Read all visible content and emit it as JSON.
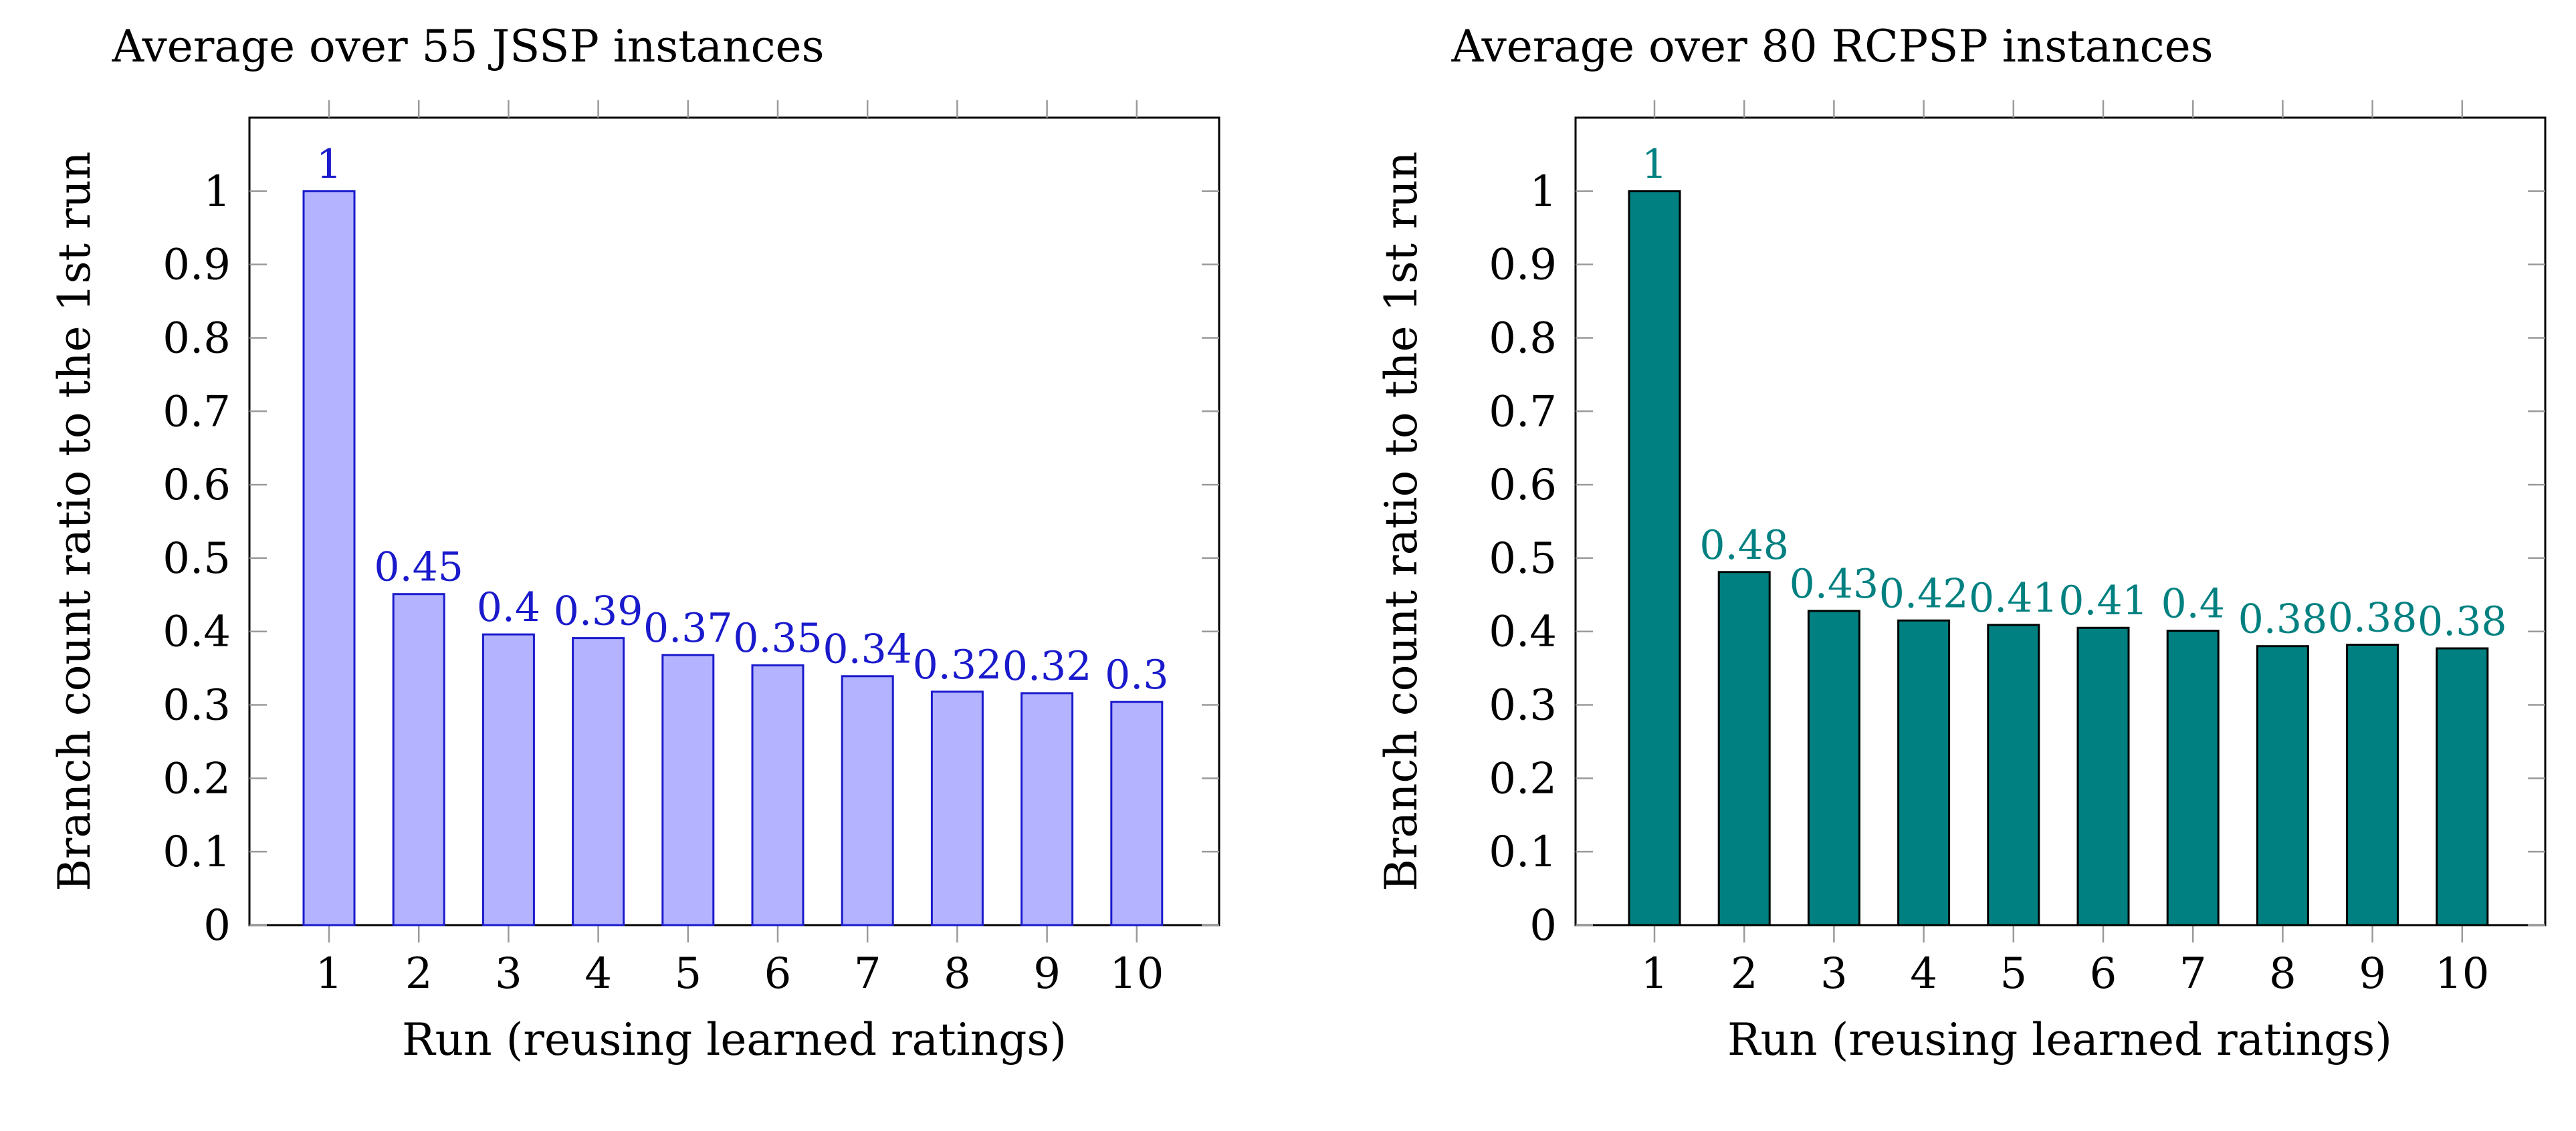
{
  "chart_data": [
    {
      "type": "bar",
      "title": "Average over 55 JSSP instances",
      "xlabel": "Run (reusing learned ratings)",
      "ylabel": "Branch count ratio to the 1st run",
      "categories": [
        "1",
        "2",
        "3",
        "4",
        "5",
        "6",
        "7",
        "8",
        "9",
        "10"
      ],
      "values": [
        1,
        0.451,
        0.396,
        0.391,
        0.368,
        0.354,
        0.339,
        0.318,
        0.316,
        0.304
      ],
      "data_labels": [
        "1",
        "0.45",
        "0.4",
        "0.39",
        "0.37",
        "0.35",
        "0.34",
        "0.32",
        "0.32",
        "0.3"
      ],
      "yticks": [
        "0",
        "0.1",
        "0.2",
        "0.3",
        "0.4",
        "0.5",
        "0.6",
        "0.7",
        "0.8",
        "0.9",
        "1"
      ],
      "ylim": [
        0,
        1.1
      ],
      "grid": false,
      "bar_fill": "#b3b3ff",
      "bar_stroke": "#1a1acc",
      "label_color": "#1a1acc"
    },
    {
      "type": "bar",
      "title": "Average over 80 RCPSP instances",
      "xlabel": "Run (reusing learned ratings)",
      "ylabel": "Branch count ratio to the 1st run",
      "categories": [
        "1",
        "2",
        "3",
        "4",
        "5",
        "6",
        "7",
        "8",
        "9",
        "10"
      ],
      "values": [
        1,
        0.481,
        0.428,
        0.415,
        0.409,
        0.405,
        0.401,
        0.38,
        0.382,
        0.377
      ],
      "data_labels": [
        "1",
        "0.48",
        "0.43",
        "0.42",
        "0.41",
        "0.41",
        "0.4",
        "0.38",
        "0.38",
        "0.38"
      ],
      "yticks": [
        "0",
        "0.1",
        "0.2",
        "0.3",
        "0.4",
        "0.5",
        "0.6",
        "0.7",
        "0.8",
        "0.9",
        "1"
      ],
      "ylim": [
        0,
        1.1
      ],
      "grid": false,
      "bar_fill": "#008080",
      "bar_stroke": "#000000",
      "label_color": "#008080"
    }
  ]
}
